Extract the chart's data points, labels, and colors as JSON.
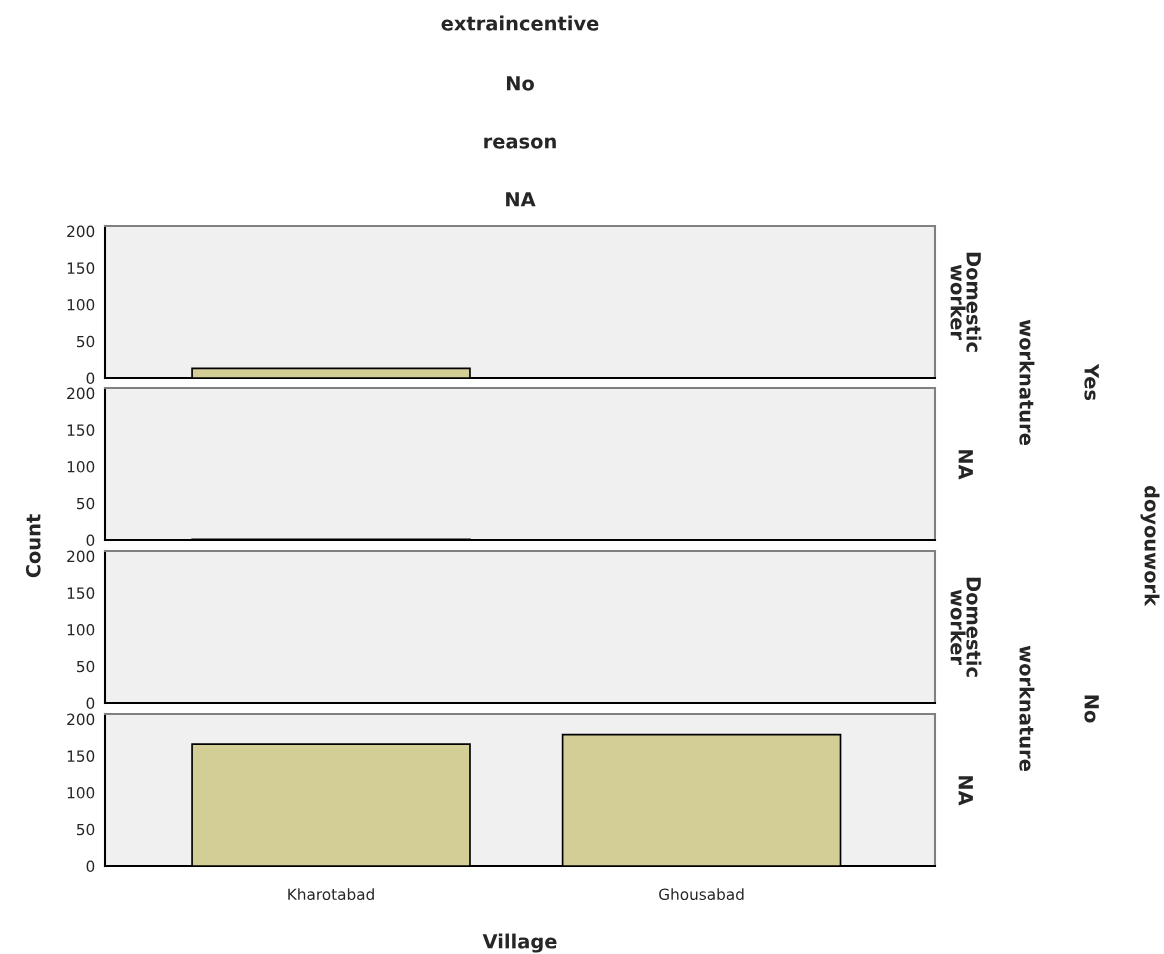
{
  "chart_data": [
    {
      "type": "bar",
      "title": "extraincentive",
      "annotations": [
        "No",
        "reason",
        "NA"
      ],
      "y2label": "Domestic worker",
      "categories": [
        null,
        null
      ],
      "values": [
        13,
        null
      ],
      "color": "#d3cd96",
      "ylim": [
        0,
        207
      ],
      "yticks": [
        0,
        50,
        100,
        150,
        200
      ],
      "tick_labels": "y",
      "grid": false,
      "legend": false
    },
    {
      "type": "bar",
      "ylabel": "Count",
      "y2label": "NA",
      "annotations": [
        "worknature",
        "Yes",
        "doyouwork"
      ],
      "categories": [
        null,
        null
      ],
      "values": [
        1,
        null
      ],
      "color": "#d3cd96",
      "ylim": [
        0,
        207
      ],
      "yticks": [
        0,
        50,
        100,
        150,
        200
      ],
      "tick_labels": "y",
      "grid": false,
      "legend": false
    },
    {
      "type": "bar",
      "y2label": "Domestic worker",
      "categories": [
        null,
        null
      ],
      "values": [
        null,
        null
      ],
      "ylim": [
        0,
        207
      ],
      "yticks": [
        0,
        50,
        100,
        150,
        200
      ],
      "tick_labels": "y",
      "grid": false,
      "legend": false
    },
    {
      "type": "bar",
      "y2label": "NA",
      "annotations": [
        "worknature",
        "No"
      ],
      "xlabel": "Village",
      "categories": [
        "Kharotabad",
        "Ghousabad"
      ],
      "values": [
        166,
        179
      ],
      "color": "#d3cd96",
      "ylim": [
        0,
        207
      ],
      "yticks": [
        0,
        50,
        100,
        150,
        200
      ],
      "grid": false,
      "legend": false
    }
  ]
}
